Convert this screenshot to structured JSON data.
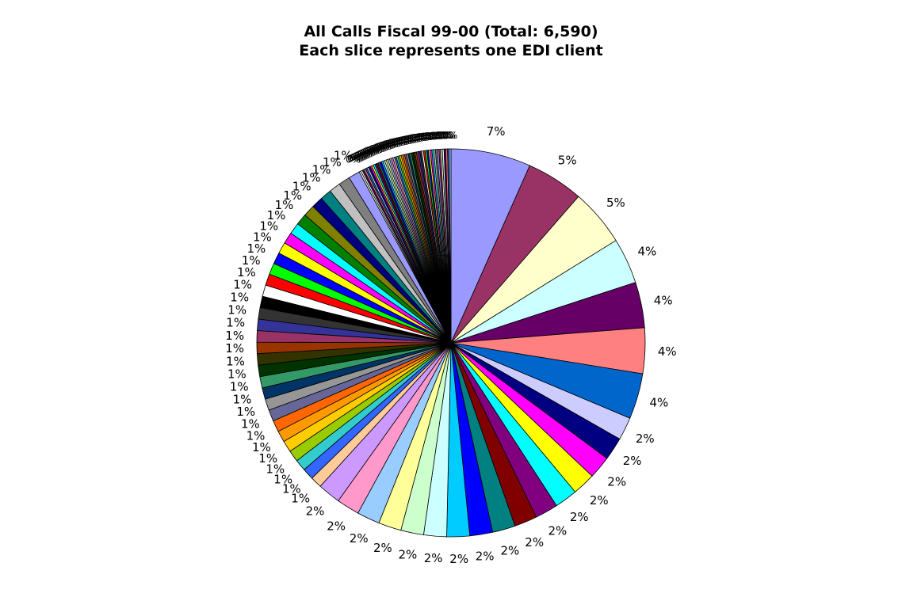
{
  "chart_data": {
    "type": "pie",
    "title": "All Calls Fiscal 99-00 (Total: 6,590)",
    "subtitle": "Each slice represents one EDI client",
    "start_angle_deg": 0,
    "direction": "clockwise",
    "slices": [
      {
        "value": 7,
        "label": "7%",
        "color": "#9999FF"
      },
      {
        "value": 5,
        "label": "5%",
        "color": "#993366"
      },
      {
        "value": 5,
        "label": "5%",
        "color": "#FFFFCC"
      },
      {
        "value": 4,
        "label": "4%",
        "color": "#CCFFFF"
      },
      {
        "value": 4,
        "label": "4%",
        "color": "#660066"
      },
      {
        "value": 4,
        "label": "4%",
        "color": "#FF8080"
      },
      {
        "value": 4,
        "label": "4%",
        "color": "#0066CC"
      },
      {
        "value": 2,
        "label": "2%",
        "color": "#CCCCFF"
      },
      {
        "value": 2,
        "label": "2%",
        "color": "#000080"
      },
      {
        "value": 2,
        "label": "2%",
        "color": "#FF00FF"
      },
      {
        "value": 2,
        "label": "2%",
        "color": "#FFFF00"
      },
      {
        "value": 2,
        "label": "2%",
        "color": "#00FFFF"
      },
      {
        "value": 2,
        "label": "2%",
        "color": "#800080"
      },
      {
        "value": 2,
        "label": "2%",
        "color": "#800000"
      },
      {
        "value": 2,
        "label": "2%",
        "color": "#008080"
      },
      {
        "value": 2,
        "label": "2%",
        "color": "#0000FF"
      },
      {
        "value": 2,
        "label": "2%",
        "color": "#00CCFF"
      },
      {
        "value": 2,
        "label": "2%",
        "color": "#CCFFFF"
      },
      {
        "value": 2,
        "label": "2%",
        "color": "#CCFFCC"
      },
      {
        "value": 2,
        "label": "2%",
        "color": "#FFFF99"
      },
      {
        "value": 2,
        "label": "2%",
        "color": "#99CCFF"
      },
      {
        "value": 2,
        "label": "2%",
        "color": "#FF99CC"
      },
      {
        "value": 2,
        "label": "2%",
        "color": "#CC99FF"
      },
      {
        "value": 1,
        "label": "1%",
        "color": "#FFCC99"
      },
      {
        "value": 1,
        "label": "1%",
        "color": "#3366FF"
      },
      {
        "value": 1,
        "label": "1%",
        "color": "#33CCCC"
      },
      {
        "value": 1,
        "label": "1%",
        "color": "#99CC00"
      },
      {
        "value": 1,
        "label": "1%",
        "color": "#FFCC00"
      },
      {
        "value": 1,
        "label": "1%",
        "color": "#FF9900"
      },
      {
        "value": 1,
        "label": "1%",
        "color": "#FF6600"
      },
      {
        "value": 1,
        "label": "1%",
        "color": "#666699"
      },
      {
        "value": 1,
        "label": "1%",
        "color": "#969696"
      },
      {
        "value": 1,
        "label": "1%",
        "color": "#003366"
      },
      {
        "value": 1,
        "label": "1%",
        "color": "#339966"
      },
      {
        "value": 1,
        "label": "1%",
        "color": "#003300"
      },
      {
        "value": 1,
        "label": "1%",
        "color": "#333300"
      },
      {
        "value": 1,
        "label": "1%",
        "color": "#993300"
      },
      {
        "value": 1,
        "label": "1%",
        "color": "#993366"
      },
      {
        "value": 1,
        "label": "1%",
        "color": "#333399"
      },
      {
        "value": 1,
        "label": "1%",
        "color": "#333333"
      },
      {
        "value": 1,
        "label": "1%",
        "color": "#000000"
      },
      {
        "value": 1,
        "label": "1%",
        "color": "#FFFFFF"
      },
      {
        "value": 1,
        "label": "1%",
        "color": "#FF0000"
      },
      {
        "value": 1,
        "label": "1%",
        "color": "#00FF00"
      },
      {
        "value": 1,
        "label": "1%",
        "color": "#0000FF"
      },
      {
        "value": 1,
        "label": "1%",
        "color": "#FFFF00"
      },
      {
        "value": 1,
        "label": "1%",
        "color": "#FF00FF"
      },
      {
        "value": 1,
        "label": "1%",
        "color": "#00FFFF"
      },
      {
        "value": 1,
        "label": "1%",
        "color": "#008000"
      },
      {
        "value": 1,
        "label": "1%",
        "color": "#808000"
      },
      {
        "value": 1,
        "label": "1%",
        "color": "#000080"
      },
      {
        "value": 1,
        "label": "1%",
        "color": "#008080"
      },
      {
        "value": 1,
        "label": "1%",
        "color": "#C0C0C0"
      },
      {
        "value": 1,
        "label": "1%",
        "color": "#808080"
      },
      {
        "value": 1,
        "label": "1%",
        "color": "#9999FF"
      },
      {
        "value": 0,
        "label": "0%",
        "color": "#FFFFCC"
      },
      {
        "value": 0,
        "label": "0%",
        "color": "#CCFFFF"
      },
      {
        "value": 0,
        "label": "0%",
        "color": "#660066"
      },
      {
        "value": 0,
        "label": "0%",
        "color": "#FF8080"
      },
      {
        "value": 0,
        "label": "0%",
        "color": "#0066CC"
      },
      {
        "value": 0,
        "label": "0%",
        "color": "#CCCCFF"
      },
      {
        "value": 0,
        "label": "0%",
        "color": "#000080"
      },
      {
        "value": 0,
        "label": "0%",
        "color": "#FF00FF"
      },
      {
        "value": 0,
        "label": "0%",
        "color": "#FFFF00"
      },
      {
        "value": 0,
        "label": "0%",
        "color": "#00FFFF"
      },
      {
        "value": 0,
        "label": "0%",
        "color": "#800080"
      },
      {
        "value": 0,
        "label": "0%",
        "color": "#800000"
      },
      {
        "value": 0,
        "label": "0%",
        "color": "#008080"
      },
      {
        "value": 0,
        "label": "0%",
        "color": "#0000FF"
      },
      {
        "value": 0,
        "label": "0%",
        "color": "#00CCFF"
      },
      {
        "value": 0,
        "label": "0%",
        "color": "#CCFFFF"
      },
      {
        "value": 0,
        "label": "0%",
        "color": "#CCFFCC"
      },
      {
        "value": 0,
        "label": "0%",
        "color": "#FFFF99"
      },
      {
        "value": 0,
        "label": "0%",
        "color": "#99CCFF"
      },
      {
        "value": 0,
        "label": "0%",
        "color": "#FF99CC"
      },
      {
        "value": 0,
        "label": "0%",
        "color": "#CC99FF"
      },
      {
        "value": 0,
        "label": "0%",
        "color": "#FFCC99"
      },
      {
        "value": 0,
        "label": "0%",
        "color": "#3366FF"
      },
      {
        "value": 0,
        "label": "0%",
        "color": "#33CCCC"
      },
      {
        "value": 0,
        "label": "0%",
        "color": "#99CC00"
      },
      {
        "value": 0,
        "label": "0%",
        "color": "#FFCC00"
      },
      {
        "value": 0,
        "label": "0%",
        "color": "#FF9900"
      },
      {
        "value": 0,
        "label": "0%",
        "color": "#FF6600"
      },
      {
        "value": 0,
        "label": "0%",
        "color": "#666699"
      },
      {
        "value": 0,
        "label": "0%",
        "color": "#969696"
      },
      {
        "value": 0,
        "label": "0%",
        "color": "#003366"
      },
      {
        "value": 0,
        "label": "0%",
        "color": "#339966"
      },
      {
        "value": 0,
        "label": "0%",
        "color": "#003300"
      },
      {
        "value": 0,
        "label": "0%",
        "color": "#333300"
      },
      {
        "value": 0,
        "label": "0%",
        "color": "#993300"
      },
      {
        "value": 0,
        "label": "0%",
        "color": "#993366"
      },
      {
        "value": 0,
        "label": "0%",
        "color": "#333399"
      },
      {
        "value": 0,
        "label": "0%",
        "color": "#333333"
      },
      {
        "value": 0,
        "label": "0%",
        "color": "#FFFFFF"
      },
      {
        "value": 0,
        "label": "0%",
        "color": "#FF0000"
      },
      {
        "value": 0,
        "label": "0%",
        "color": "#00FF00"
      },
      {
        "value": 0,
        "label": "0%",
        "color": "#0000FF"
      },
      {
        "value": 0,
        "label": "0%",
        "color": "#FFFF00"
      },
      {
        "value": 0,
        "label": "0%",
        "color": "#FF00FF"
      },
      {
        "value": 0,
        "label": "0%",
        "color": "#00FFFF"
      },
      {
        "value": 0,
        "label": "0%",
        "color": "#C0C0C0"
      },
      {
        "value": 0,
        "label": "0%",
        "color": "#808080"
      },
      {
        "value": 0,
        "label": "0%",
        "color": "#9999FF"
      },
      {
        "value": 0,
        "label": "0%",
        "color": "#993366"
      },
      {
        "value": 0,
        "label": "0%",
        "color": "#FFFFCC"
      },
      {
        "value": 0,
        "label": "0%",
        "color": "#CCFFFF"
      },
      {
        "value": 0,
        "label": "0%",
        "color": "#660066"
      },
      {
        "value": 0,
        "label": "0%",
        "color": "#FF8080"
      },
      {
        "value": 0,
        "label": "0%",
        "color": "#0066CC"
      },
      {
        "value": 0,
        "label": "0%",
        "color": "#CCCCFF"
      }
    ]
  }
}
